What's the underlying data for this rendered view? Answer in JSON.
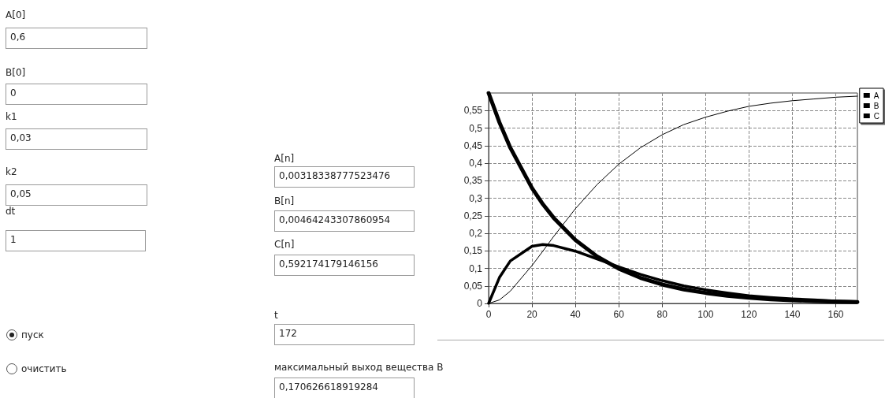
{
  "chart_data": [
    {
      "type": "other",
      "annotations": [
        "A[0]",
        "0,6",
        "B[0]",
        "0",
        "k1",
        "0,03",
        "k2",
        "0,05",
        "dt",
        "1",
        "A[n]",
        "0,00318338777523476",
        "B[n]",
        "0,00464243307860954",
        "C[n]",
        "0,592174179146156",
        "t",
        "172",
        "пуск",
        "очистить",
        "максимальный выход вещества B",
        "0,170626618919284"
      ]
    },
    {
      "type": "line",
      "x": [
        0,
        5,
        10,
        20,
        25,
        30,
        40,
        50,
        60,
        70,
        80,
        90,
        100,
        110,
        120,
        130,
        140,
        150,
        160,
        170
      ],
      "series": [
        {
          "name": "A",
          "color": "#000000",
          "values": [
            0.6,
            0.516,
            0.444,
            0.329,
            0.283,
            0.244,
            0.181,
            0.134,
            0.099,
            0.073,
            0.054,
            0.04,
            0.03,
            0.022,
            0.016,
            0.012,
            0.009,
            0.007,
            0.005,
            0.004
          ]
        },
        {
          "name": "B",
          "color": "#000000",
          "values": [
            0,
            0.074,
            0.121,
            0.163,
            0.168,
            0.165,
            0.149,
            0.127,
            0.104,
            0.083,
            0.065,
            0.05,
            0.039,
            0.03,
            0.022,
            0.017,
            0.013,
            0.01,
            0.007,
            0.005
          ]
        },
        {
          "name": "C",
          "color": "#000000",
          "values": [
            0,
            0.01,
            0.035,
            0.108,
            0.149,
            0.191,
            0.27,
            0.339,
            0.397,
            0.444,
            0.481,
            0.51,
            0.531,
            0.548,
            0.562,
            0.571,
            0.578,
            0.583,
            0.588,
            0.591
          ]
        }
      ],
      "xlim": [
        0,
        170
      ],
      "xticks": [
        0,
        20,
        40,
        60,
        80,
        100,
        120,
        140,
        160
      ],
      "ylim": [
        0,
        0.6
      ],
      "yticks": [
        0,
        {
          "value": 0.05,
          "label": "0,05"
        },
        {
          "value": 0.1,
          "label": "0,1"
        },
        {
          "value": 0.15,
          "label": "0,15"
        },
        {
          "value": 0.2,
          "label": "0,2"
        },
        {
          "value": 0.25,
          "label": "0,25"
        },
        {
          "value": 0.3,
          "label": "0,3"
        },
        {
          "value": 0.35,
          "label": "0,35"
        },
        {
          "value": 0.4,
          "label": "0,4"
        },
        {
          "value": 0.45,
          "label": "0,45"
        },
        {
          "value": 0.5,
          "label": "0,5"
        },
        {
          "value": 0.55,
          "label": "0,55"
        }
      ],
      "grid": true,
      "legend": "top right",
      "marker": "none",
      "line_style": "solid"
    }
  ]
}
